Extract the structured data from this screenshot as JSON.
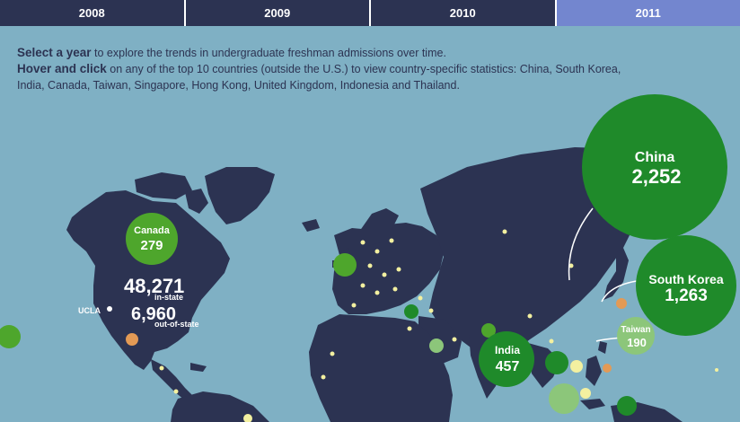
{
  "tabs": [
    {
      "label": "2008",
      "active": false
    },
    {
      "label": "2009",
      "active": false
    },
    {
      "label": "2010",
      "active": false
    },
    {
      "label": "2011",
      "active": true
    }
  ],
  "intro": {
    "line1_bold": "Select a year",
    "line1_rest": " to explore the trends in undergraduate freshman admissions over time.",
    "line2_bold": "Hover and click",
    "line2_rest": " on any of the top 10 countries (outside the U.S.) to view country-specific statistics: China, South Korea, India, Canada, Taiwan, Singapore, Hong Kong, United Kingdom, Indonesia and Thailand."
  },
  "us": {
    "instate_value": "48,271",
    "instate_label": "in-state",
    "outofstate_value": "6,960",
    "outofstate_label": "out-of-state",
    "campus_label": "UCLA"
  },
  "countries": {
    "china": {
      "name": "China",
      "value": "2,252"
    },
    "south_korea": {
      "name": "South Korea",
      "value": "1,263"
    },
    "india": {
      "name": "India",
      "value": "457"
    },
    "canada": {
      "name": "Canada",
      "value": "279"
    },
    "taiwan": {
      "name": "Taiwan",
      "value": "190"
    }
  },
  "colors": {
    "ocean": "#7fb0c4",
    "land": "#2c3352",
    "tab_active": "#7386cf",
    "bubble_dark_green": "#1f8a2a",
    "bubble_mid_green": "#4ea62c",
    "bubble_light_green": "#8cc67a",
    "dot_yellow": "#f3f0a0",
    "dot_orange": "#e39a55"
  }
}
